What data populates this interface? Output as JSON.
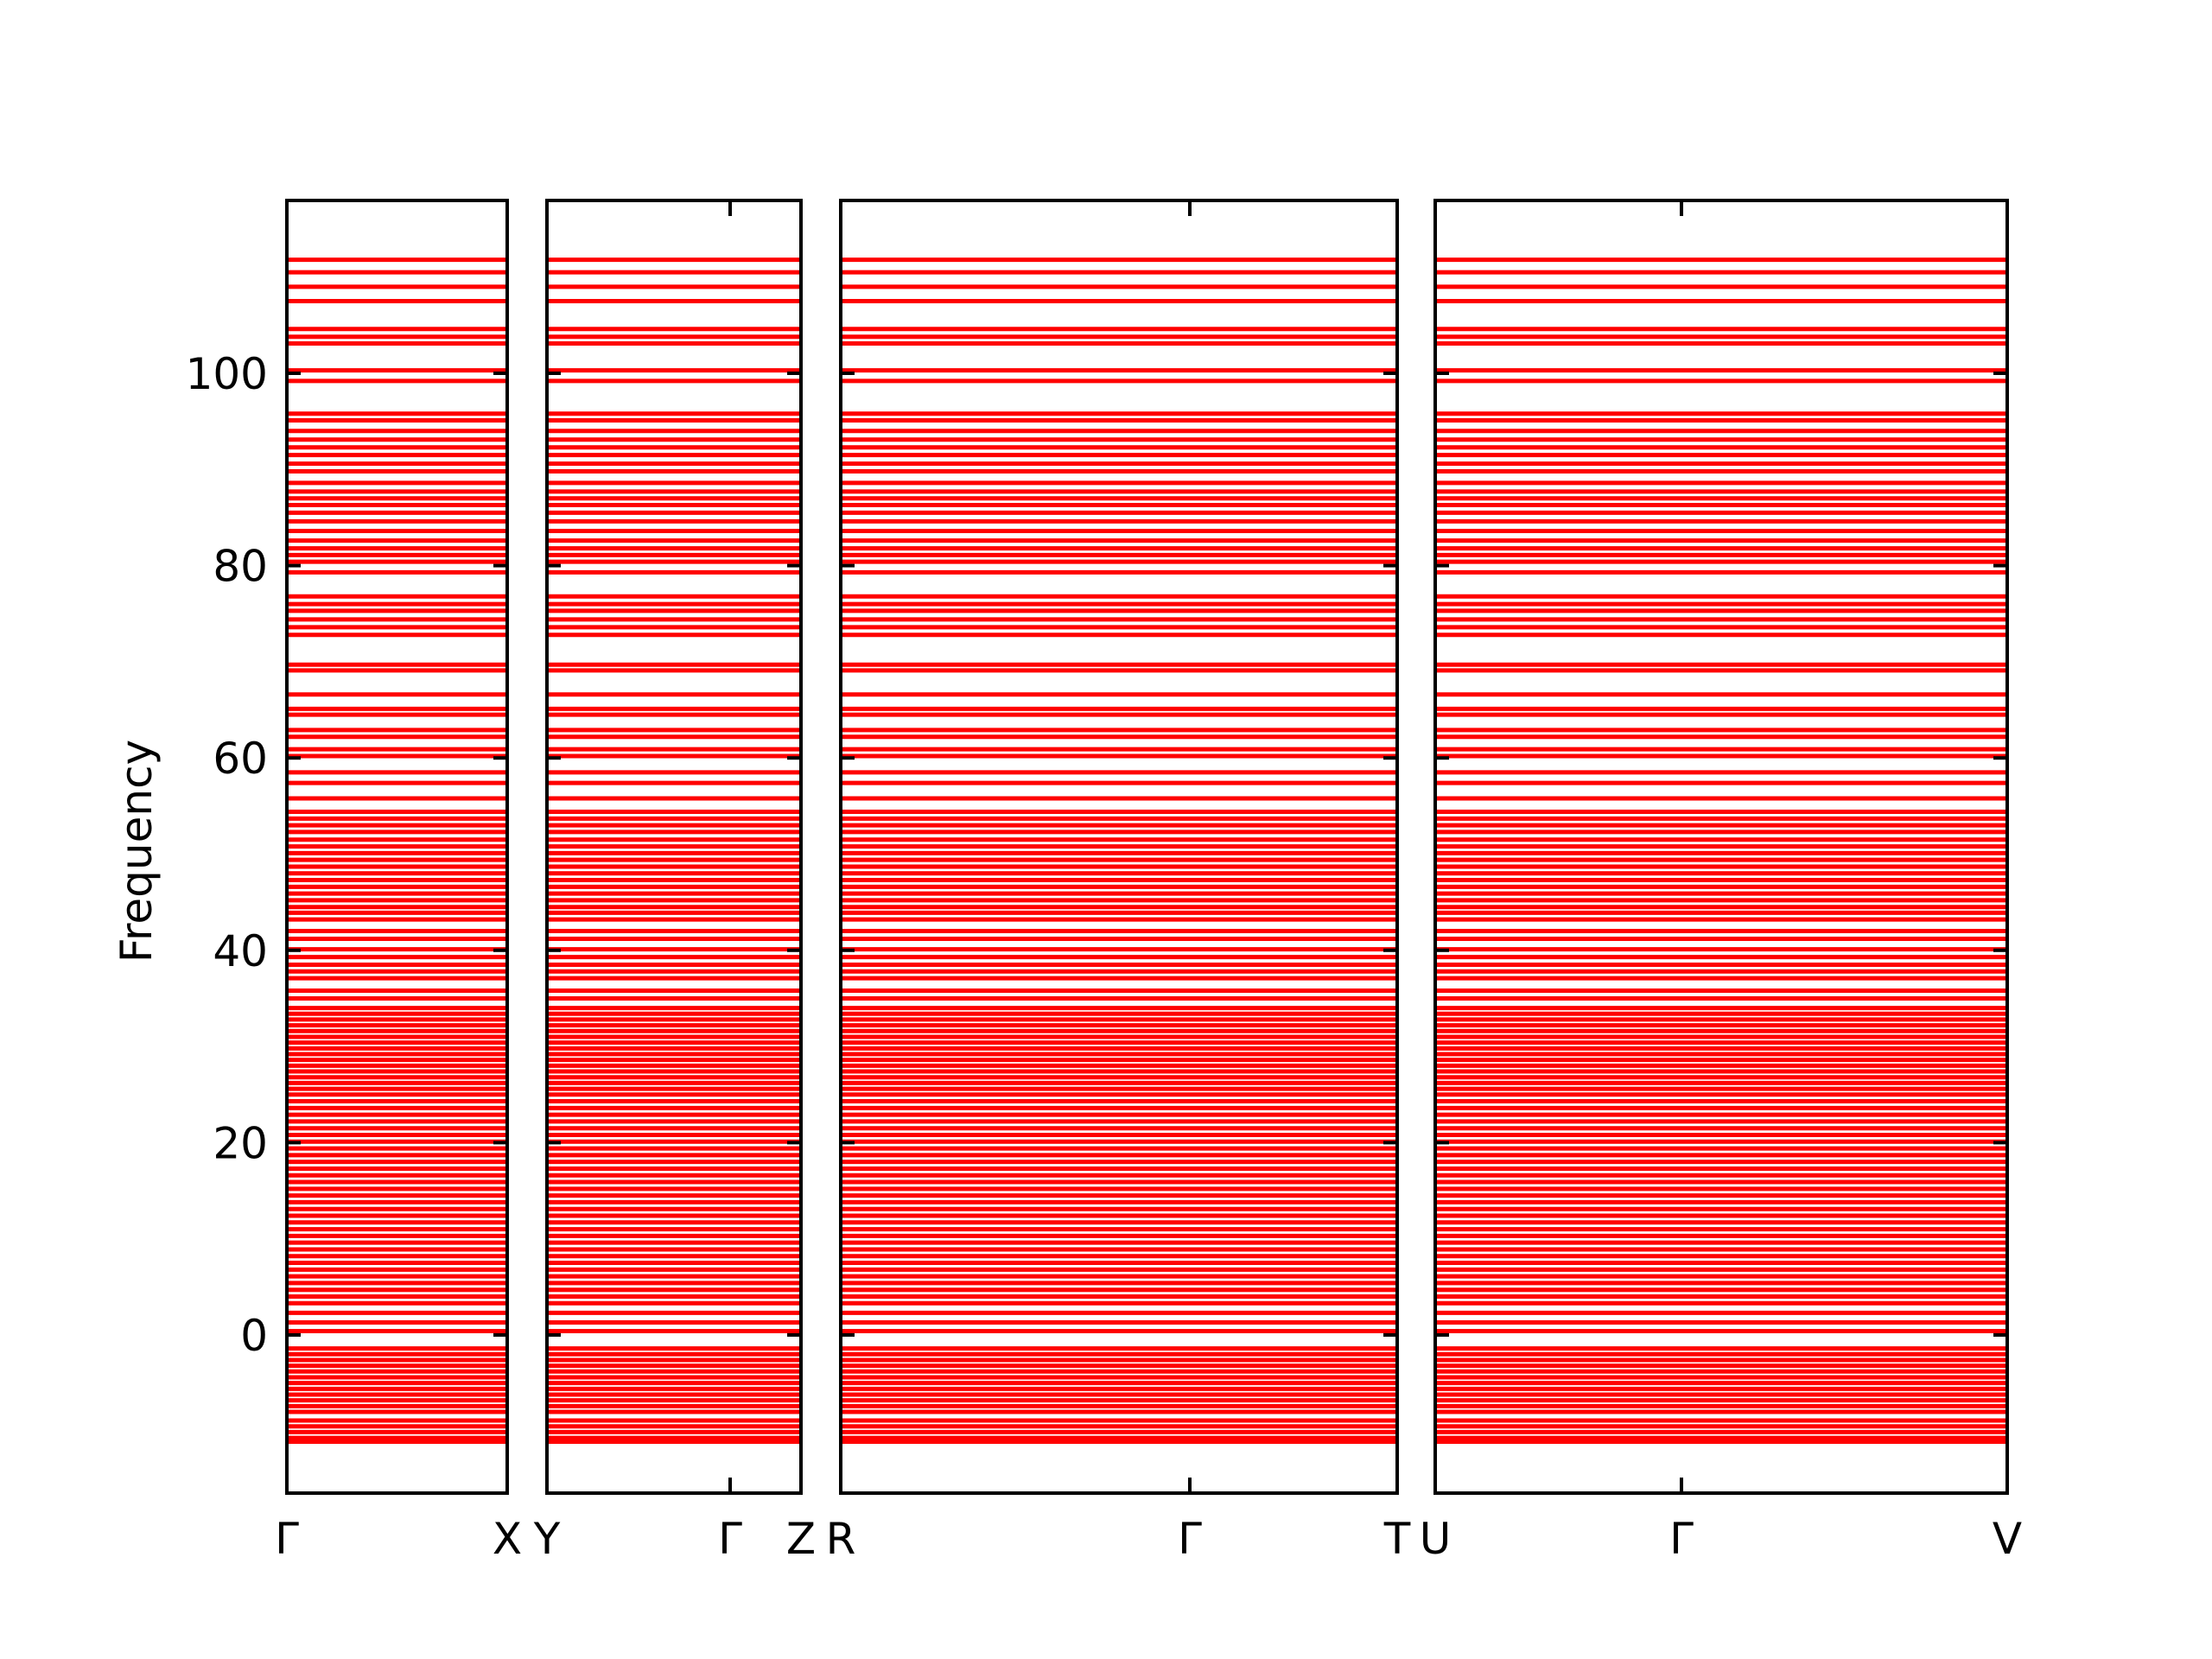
{
  "chart_data": {
    "type": "line",
    "title": "",
    "xlabel": "",
    "ylabel": "Frequency",
    "ylim": [
      -17.1,
      118
    ],
    "yticks": [
      0,
      20,
      40,
      60,
      80,
      100
    ],
    "grid": false,
    "legend": "none",
    "line_color": "#ff0000",
    "panels": [
      {
        "xticks": [
          "Γ",
          "X"
        ]
      },
      {
        "xticks": [
          "Y",
          "Γ",
          "Z"
        ]
      },
      {
        "xticks": [
          "R",
          "Γ",
          "T"
        ]
      },
      {
        "xticks": [
          "U",
          "Γ",
          "V"
        ]
      }
    ],
    "band_frequencies": [
      111.8,
      110.5,
      109.0,
      107.5,
      104.6,
      103.8,
      103.1,
      100.3,
      99.2,
      95.8,
      95.1,
      94.0,
      93.1,
      92.3,
      91.5,
      90.6,
      89.8,
      88.6,
      87.7,
      87.0,
      86.3,
      85.5,
      84.6,
      83.6,
      82.6,
      81.8,
      81.1,
      80.4,
      79.3,
      76.8,
      76.0,
      75.3,
      74.4,
      73.6,
      72.8,
      69.7,
      69.1,
      66.6,
      65.1,
      64.5,
      62.9,
      62.2,
      60.9,
      60.2,
      58.5,
      57.4,
      55.8,
      54.4,
      53.7,
      53.0,
      52.3,
      51.5,
      50.8,
      50.1,
      49.4,
      48.7,
      48.0,
      47.3,
      46.6,
      45.9,
      45.2,
      44.5,
      43.9,
      43.2,
      42.0,
      41.2,
      40.1,
      39.3,
      38.5,
      37.8,
      37.1,
      35.8,
      35.0,
      34.0,
      33.4,
      32.8,
      32.2,
      31.6,
      31.0,
      30.4,
      29.8,
      29.2,
      28.6,
      28.0,
      27.4,
      26.8,
      26.2,
      25.6,
      25.0,
      24.3,
      23.6,
      22.9,
      22.2,
      21.5,
      20.8,
      20.1,
      19.4,
      18.7,
      18.0,
      17.3,
      16.6,
      15.9,
      15.2,
      14.5,
      13.8,
      13.1,
      12.4,
      11.7,
      11.0,
      10.3,
      9.6,
      8.9,
      8.2,
      7.5,
      6.8,
      6.1,
      5.4,
      4.7,
      4.0,
      3.3,
      2.3,
      1.3,
      0.4,
      -1.4,
      -2.0,
      -2.6,
      -3.2,
      -3.8,
      -4.4,
      -5.0,
      -5.6,
      -6.2,
      -6.8,
      -7.4,
      -8.0,
      -8.9,
      -9.5,
      -10.1,
      -10.7,
      -11.1
    ]
  }
}
